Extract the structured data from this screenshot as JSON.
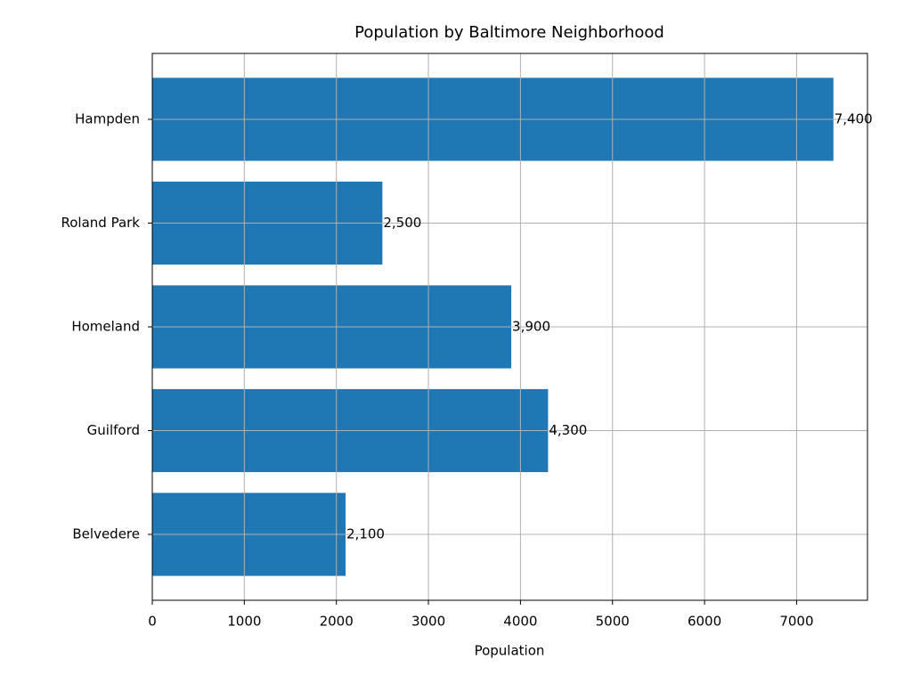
{
  "chart_data": {
    "type": "barh",
    "title": "Population by Baltimore Neighborhood",
    "x_label": "Population",
    "categories": [
      "Belvedere",
      "Guilford",
      "Homeland",
      "Roland Park",
      "Hampden"
    ],
    "values": [
      2100,
      4300,
      3900,
      2500,
      7400
    ],
    "value_labels": [
      "2,100",
      "4,300",
      "3,900",
      "2,500",
      "7,400"
    ],
    "color": "#1f77b4",
    "xlim": [
      0,
      7770
    ],
    "xticks": [
      0,
      1000,
      2000,
      3000,
      4000,
      5000,
      6000,
      7000
    ],
    "grid": true
  }
}
